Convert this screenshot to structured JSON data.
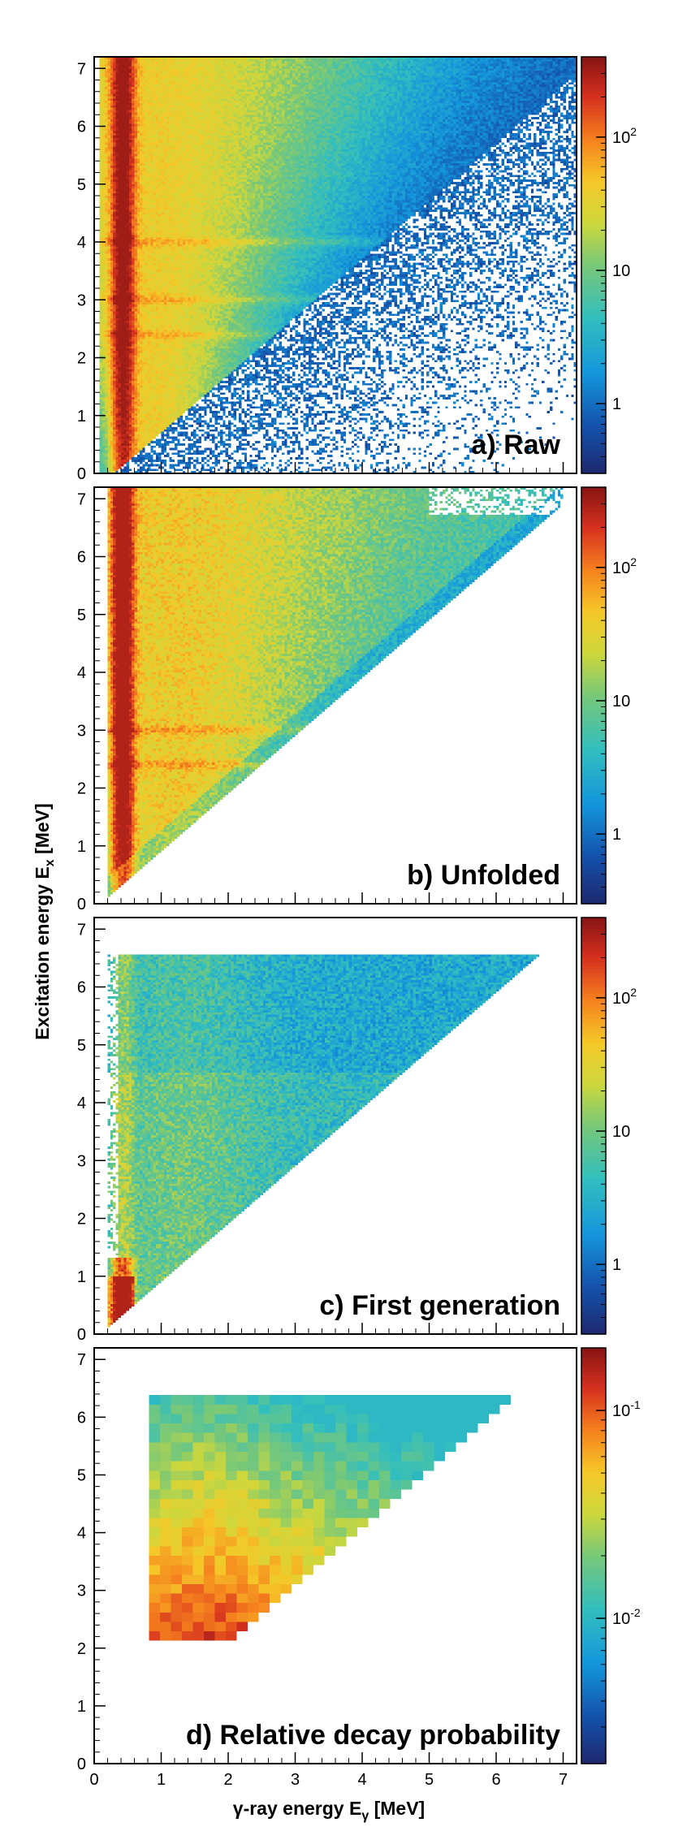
{
  "figure": {
    "ylabel_main": "Excitation energy E",
    "ylabel_sub": "x",
    "ylabel_unit": " [MeV]",
    "xlabel_main": "γ-ray energy E",
    "xlabel_sub": "γ",
    "xlabel_unit": " [MeV]"
  },
  "chart_data": [
    {
      "type": "heatmap",
      "panel_label": "a) Raw",
      "xlim": [
        0,
        7.2
      ],
      "ylim": [
        0,
        7.2
      ],
      "x_ticks": [
        0,
        1,
        2,
        3,
        4,
        5,
        6,
        7
      ],
      "y_ticks": [
        0,
        1,
        2,
        3,
        4,
        5,
        6,
        7
      ],
      "colorbar": {
        "scale": "log",
        "range": [
          0.3,
          400
        ],
        "ticks": [
          {
            "v": 1,
            "base": "1",
            "exp": ""
          },
          {
            "v": 10,
            "base": "10",
            "exp": ""
          },
          {
            "v": 100,
            "base": "10",
            "exp": "2"
          }
        ]
      },
      "region": "raw",
      "vertical_line_Eg": [
        0.35,
        0.5
      ],
      "horizontal_bands_Ex": [
        2.4,
        3.0,
        4.0
      ]
    },
    {
      "type": "heatmap",
      "panel_label": "b) Unfolded",
      "xlim": [
        0,
        7.2
      ],
      "ylim": [
        0,
        7.2
      ],
      "x_ticks": [
        0,
        1,
        2,
        3,
        4,
        5,
        6,
        7
      ],
      "y_ticks": [
        0,
        1,
        2,
        3,
        4,
        5,
        6,
        7
      ],
      "colorbar": {
        "scale": "log",
        "range": [
          0.3,
          400
        ],
        "ticks": [
          {
            "v": 1,
            "base": "1",
            "exp": ""
          },
          {
            "v": 10,
            "base": "10",
            "exp": ""
          },
          {
            "v": 100,
            "base": "10",
            "exp": "2"
          }
        ]
      },
      "region": "triangle",
      "diagonal_max_Eg": 7.0,
      "vertical_line_Eg": [
        0.35,
        0.5
      ],
      "horizontal_bands_Ex": [
        2.4,
        3.0
      ]
    },
    {
      "type": "heatmap",
      "panel_label": "c) First generation",
      "xlim": [
        0,
        7.2
      ],
      "ylim": [
        0,
        7.2
      ],
      "x_ticks": [
        0,
        1,
        2,
        3,
        4,
        5,
        6,
        7
      ],
      "y_ticks": [
        0,
        1,
        2,
        3,
        4,
        5,
        6,
        7
      ],
      "colorbar": {
        "scale": "log",
        "range": [
          0.3,
          400
        ],
        "ticks": [
          {
            "v": 1,
            "base": "1",
            "exp": ""
          },
          {
            "v": 10,
            "base": "10",
            "exp": ""
          },
          {
            "v": 100,
            "base": "10",
            "exp": "2"
          }
        ]
      },
      "region": "triangle_cut",
      "Ex_max": 6.55,
      "vertical_line_Eg": [
        0.35,
        0.5
      ]
    },
    {
      "type": "heatmap",
      "panel_label": "d) Relative decay probability",
      "xlim": [
        0,
        7.2
      ],
      "ylim": [
        0,
        7.2
      ],
      "x_ticks": [
        0,
        1,
        2,
        3,
        4,
        5,
        6,
        7
      ],
      "y_ticks": [
        0,
        1,
        2,
        3,
        4,
        5,
        6,
        7
      ],
      "colorbar": {
        "scale": "log",
        "range": [
          0.002,
          0.2
        ],
        "ticks": [
          {
            "v": 0.01,
            "base": "10",
            "exp": "-2"
          },
          {
            "v": 0.1,
            "base": "10",
            "exp": "-1"
          }
        ]
      },
      "region": "window",
      "Eg_min": 0.9,
      "Ex_min": 2.05,
      "Ex_max": 6.4
    }
  ]
}
